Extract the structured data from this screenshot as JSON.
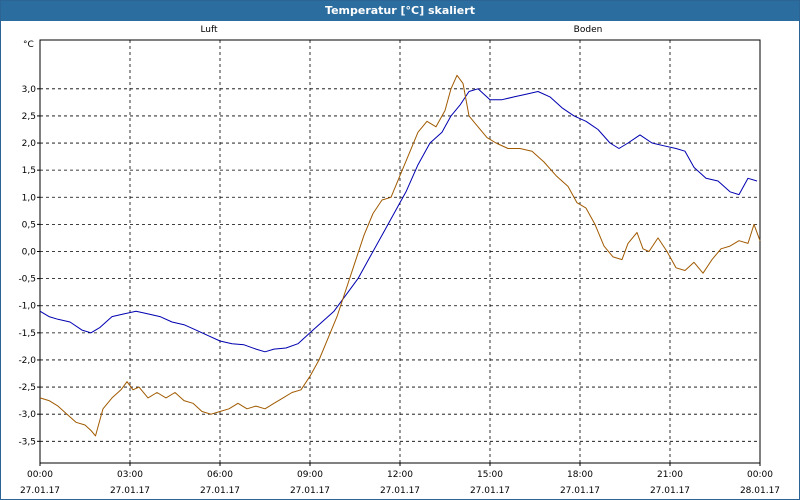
{
  "window": {
    "title": "Temperatur [°C] skaliert"
  },
  "chart_data": {
    "type": "line",
    "title": "Temperatur [°C] skaliert",
    "ylabel": "°C",
    "xlabel": "",
    "ylim": [
      -3.9,
      3.9
    ],
    "xlim": [
      0,
      24
    ],
    "grid": true,
    "y_ticks": [
      3.0,
      2.5,
      2.0,
      1.5,
      1.0,
      0.5,
      0.0,
      -0.5,
      -1.0,
      -1.5,
      -2.0,
      -2.5,
      -3.0,
      -3.5
    ],
    "y_tick_labels": [
      "3,0",
      "2,5",
      "2,0",
      "1,5",
      "1,0",
      "0,5",
      "0,0",
      "-0,5",
      "-1,0",
      "-1,5",
      "-2,0",
      "-2,5",
      "-3,0",
      "-3,5"
    ],
    "x_ticks": [
      {
        "h": 0,
        "time": "00:00",
        "date": "27.01.17"
      },
      {
        "h": 3,
        "time": "03:00",
        "date": "27.01.17"
      },
      {
        "h": 6,
        "time": "06:00",
        "date": "27.01.17"
      },
      {
        "h": 9,
        "time": "09:00",
        "date": "27.01.17"
      },
      {
        "h": 12,
        "time": "12:00",
        "date": "27.01.17"
      },
      {
        "h": 15,
        "time": "15:00",
        "date": "27.01.17"
      },
      {
        "h": 18,
        "time": "18:00",
        "date": "27.01.17"
      },
      {
        "h": 21,
        "time": "21:00",
        "date": "27.01.17"
      },
      {
        "h": 24,
        "time": "00:00",
        "date": "28.01.17"
      }
    ],
    "series": [
      {
        "name": "Luft",
        "color": "#0000b0",
        "x": [
          0,
          0.3,
          0.6,
          1.0,
          1.4,
          1.7,
          2.0,
          2.4,
          2.8,
          3.2,
          3.6,
          4.0,
          4.4,
          4.8,
          5.2,
          5.6,
          6.0,
          6.4,
          6.8,
          7.2,
          7.5,
          7.8,
          8.2,
          8.6,
          9.0,
          9.4,
          9.8,
          10.2,
          10.6,
          11.0,
          11.4,
          11.8,
          12.2,
          12.6,
          13.0,
          13.4,
          13.7,
          14.0,
          14.3,
          14.6,
          15.0,
          15.4,
          15.8,
          16.2,
          16.6,
          17.0,
          17.4,
          17.8,
          18.2,
          18.6,
          19.0,
          19.3,
          19.6,
          20.0,
          20.4,
          20.8,
          21.2,
          21.5,
          21.8,
          22.2,
          22.6,
          23.0,
          23.3,
          23.6,
          23.9
        ],
        "y": [
          -1.1,
          -1.2,
          -1.25,
          -1.3,
          -1.45,
          -1.5,
          -1.4,
          -1.2,
          -1.15,
          -1.1,
          -1.15,
          -1.2,
          -1.3,
          -1.35,
          -1.45,
          -1.55,
          -1.65,
          -1.7,
          -1.72,
          -1.8,
          -1.85,
          -1.8,
          -1.78,
          -1.7,
          -1.5,
          -1.3,
          -1.1,
          -0.8,
          -0.5,
          -0.1,
          0.3,
          0.7,
          1.1,
          1.6,
          2.0,
          2.2,
          2.5,
          2.7,
          2.95,
          3.0,
          2.8,
          2.8,
          2.85,
          2.9,
          2.95,
          2.85,
          2.65,
          2.5,
          2.4,
          2.25,
          2.0,
          1.9,
          2.0,
          2.15,
          2.0,
          1.95,
          1.9,
          1.85,
          1.55,
          1.35,
          1.3,
          1.1,
          1.05,
          1.35,
          1.3
        ]
      },
      {
        "name": "Boden",
        "color": "#a05a00",
        "x": [
          0,
          0.3,
          0.6,
          0.9,
          1.2,
          1.5,
          1.7,
          1.85,
          2.1,
          2.4,
          2.7,
          2.9,
          3.1,
          3.3,
          3.6,
          3.9,
          4.2,
          4.5,
          4.8,
          5.1,
          5.4,
          5.7,
          6.0,
          6.3,
          6.6,
          6.9,
          7.2,
          7.5,
          7.8,
          8.1,
          8.4,
          8.7,
          9.0,
          9.3,
          9.6,
          9.9,
          10.2,
          10.5,
          10.8,
          11.1,
          11.4,
          11.7,
          12.0,
          12.3,
          12.6,
          12.9,
          13.2,
          13.5,
          13.7,
          13.9,
          14.1,
          14.3,
          14.6,
          14.9,
          15.2,
          15.6,
          16.0,
          16.4,
          16.8,
          17.2,
          17.6,
          17.9,
          18.2,
          18.5,
          18.8,
          19.1,
          19.4,
          19.6,
          19.9,
          20.1,
          20.3,
          20.6,
          20.9,
          21.2,
          21.5,
          21.8,
          22.1,
          22.4,
          22.7,
          23.0,
          23.3,
          23.6,
          23.8,
          24.0
        ],
        "y": [
          -2.7,
          -2.75,
          -2.85,
          -3.0,
          -3.15,
          -3.2,
          -3.3,
          -3.4,
          -2.9,
          -2.7,
          -2.55,
          -2.4,
          -2.55,
          -2.5,
          -2.7,
          -2.6,
          -2.7,
          -2.6,
          -2.75,
          -2.8,
          -2.95,
          -3.0,
          -2.95,
          -2.9,
          -2.8,
          -2.9,
          -2.85,
          -2.9,
          -2.8,
          -2.7,
          -2.6,
          -2.55,
          -2.3,
          -2.0,
          -1.6,
          -1.2,
          -0.7,
          -0.2,
          0.3,
          0.7,
          0.95,
          1.0,
          1.4,
          1.8,
          2.2,
          2.4,
          2.3,
          2.6,
          3.0,
          3.25,
          3.1,
          2.5,
          2.3,
          2.1,
          2.0,
          1.9,
          1.9,
          1.85,
          1.65,
          1.4,
          1.2,
          0.9,
          0.8,
          0.5,
          0.1,
          -0.1,
          -0.15,
          0.15,
          0.35,
          0.05,
          0.0,
          0.25,
          0.0,
          -0.3,
          -0.35,
          -0.2,
          -0.4,
          -0.15,
          0.05,
          0.1,
          0.2,
          0.15,
          0.5,
          0.2
        ]
      }
    ]
  }
}
